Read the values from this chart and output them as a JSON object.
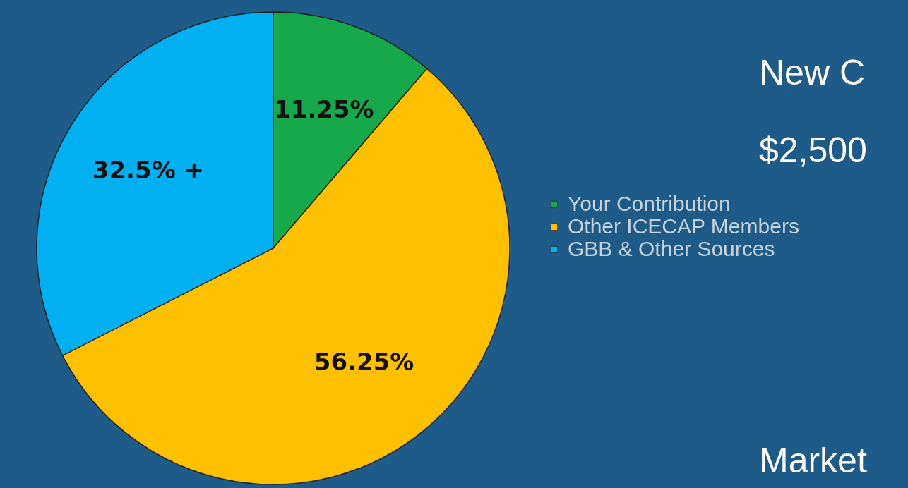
{
  "chart_data": {
    "type": "pie",
    "categories": [
      "Your Contribution",
      "Other ICECAP Members",
      "GBB & Other Sources"
    ],
    "values": [
      11.25,
      56.25,
      32.5
    ],
    "colors": [
      "#16a84a",
      "#ffc000",
      "#00b0f0"
    ],
    "value_labels": [
      "11.25%",
      "56.25%",
      "32.5% +"
    ],
    "legend": "right",
    "annotations": [
      "New C",
      "$2,500",
      "Market"
    ]
  }
}
